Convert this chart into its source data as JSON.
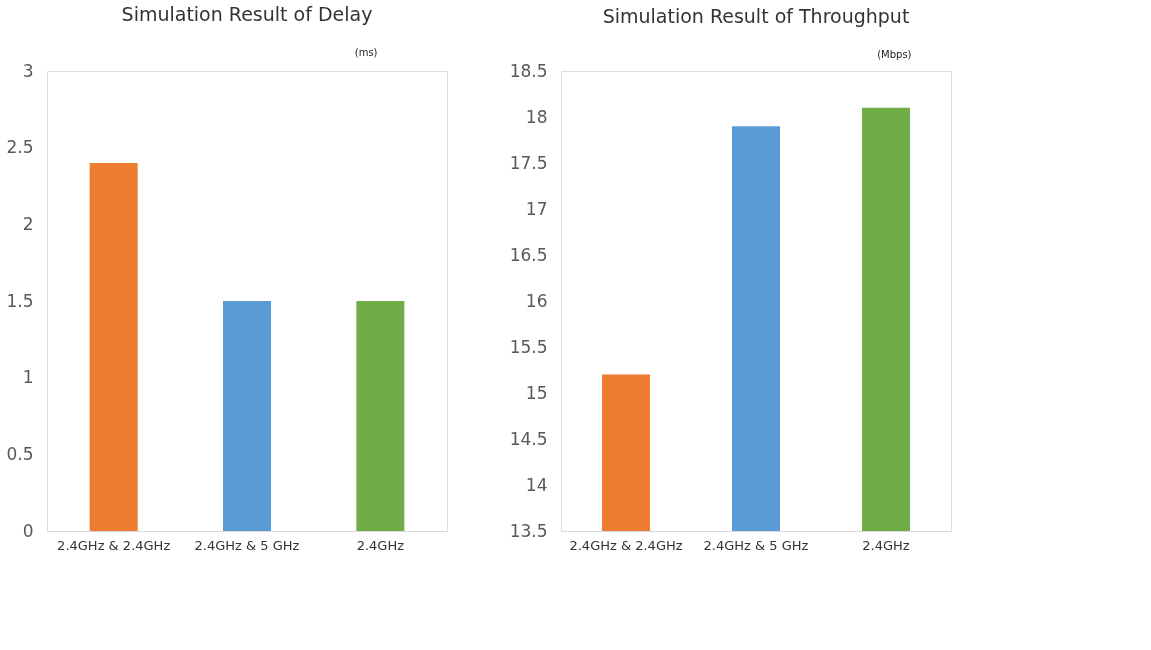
{
  "chart_data": [
    {
      "type": "bar",
      "title": "Simulation Result of Delay",
      "ylabel": "(ms)",
      "categories": [
        "2.4GHz & 2.4GHz",
        "2.4GHz & 5 GHz",
        "2.4GHz"
      ],
      "values": [
        2.4,
        1.5,
        1.5
      ],
      "colors": [
        "#ed7d31",
        "#5b9bd5",
        "#70ad47"
      ],
      "ylim": [
        0,
        3
      ],
      "yticks": [
        0,
        0.5,
        1,
        1.5,
        2,
        2.5,
        3
      ]
    },
    {
      "type": "bar",
      "title": "Simulation Result of Throughput",
      "ylabel": "(Mbps)",
      "categories": [
        "2.4GHz & 2.4GHz",
        "2.4GHz & 5 GHz",
        "2.4GHz"
      ],
      "values": [
        15.2,
        17.9,
        18.1
      ],
      "colors": [
        "#ed7d31",
        "#5b9bd5",
        "#70ad47"
      ],
      "ylim": [
        13.5,
        18.5
      ],
      "yticks": [
        13.5,
        14,
        14.5,
        15,
        15.5,
        16,
        16.5,
        17,
        17.5,
        18,
        18.5
      ]
    }
  ]
}
